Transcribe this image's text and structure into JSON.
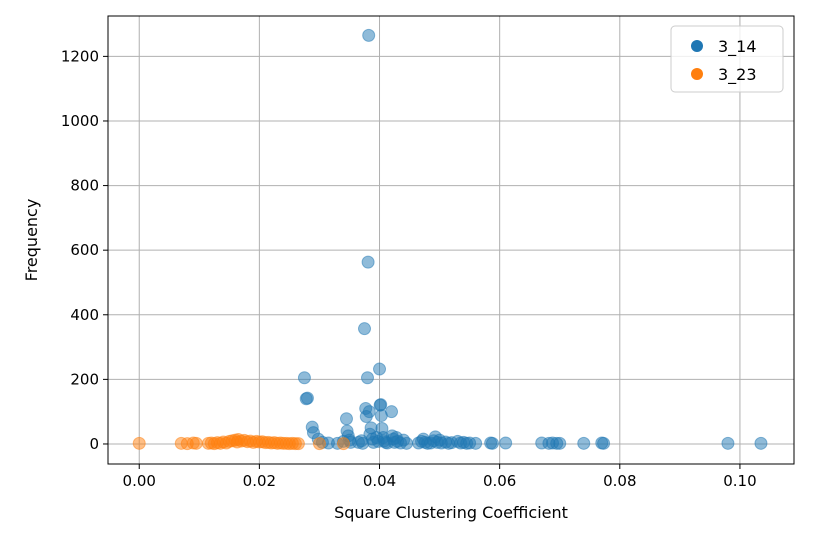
{
  "chart_data": {
    "type": "scatter",
    "title": "",
    "xlabel": "Square Clustering Coefficient",
    "ylabel": "Frequency",
    "xlim": [
      -0.0052,
      0.109
    ],
    "ylim": [
      -62,
      1325
    ],
    "xticks": [
      0.0,
      0.02,
      0.04,
      0.06,
      0.08,
      0.1
    ],
    "xtick_labels": [
      "0.00",
      "0.02",
      "0.04",
      "0.06",
      "0.08",
      "0.10"
    ],
    "yticks": [
      0,
      200,
      400,
      600,
      800,
      1000,
      1200
    ],
    "ytick_labels": [
      "0",
      "200",
      "400",
      "600",
      "800",
      "1000",
      "1200"
    ],
    "grid": true,
    "legend_position": "top-right",
    "marker_alpha": 0.5,
    "series": [
      {
        "name": "3_14",
        "color": "#1f77b4",
        "points": [
          [
            0.0275,
            205
          ],
          [
            0.0278,
            140
          ],
          [
            0.028,
            142
          ],
          [
            0.0288,
            52
          ],
          [
            0.029,
            35
          ],
          [
            0.0298,
            15
          ],
          [
            0.0305,
            5
          ],
          [
            0.0315,
            3
          ],
          [
            0.033,
            2
          ],
          [
            0.034,
            8
          ],
          [
            0.0345,
            78
          ],
          [
            0.0346,
            40
          ],
          [
            0.0348,
            25
          ],
          [
            0.035,
            12
          ],
          [
            0.0352,
            5
          ],
          [
            0.0365,
            5
          ],
          [
            0.037,
            10
          ],
          [
            0.0372,
            2
          ],
          [
            0.0375,
            357
          ],
          [
            0.0377,
            110
          ],
          [
            0.0378,
            85
          ],
          [
            0.038,
            205
          ],
          [
            0.0381,
            563
          ],
          [
            0.0382,
            1265
          ],
          [
            0.0383,
            100
          ],
          [
            0.0384,
            30
          ],
          [
            0.0386,
            50
          ],
          [
            0.0388,
            15
          ],
          [
            0.039,
            5
          ],
          [
            0.0395,
            20
          ],
          [
            0.0398,
            8
          ],
          [
            0.04,
            232
          ],
          [
            0.0401,
            120
          ],
          [
            0.0402,
            122
          ],
          [
            0.0403,
            88
          ],
          [
            0.0404,
            48
          ],
          [
            0.0406,
            20
          ],
          [
            0.0408,
            10
          ],
          [
            0.041,
            5
          ],
          [
            0.0413,
            3
          ],
          [
            0.042,
            100
          ],
          [
            0.0421,
            25
          ],
          [
            0.0423,
            15
          ],
          [
            0.0425,
            5
          ],
          [
            0.0428,
            20
          ],
          [
            0.043,
            8
          ],
          [
            0.0435,
            3
          ],
          [
            0.044,
            12
          ],
          [
            0.0445,
            2
          ],
          [
            0.0465,
            3
          ],
          [
            0.047,
            8
          ],
          [
            0.0473,
            15
          ],
          [
            0.0476,
            5
          ],
          [
            0.048,
            2
          ],
          [
            0.0485,
            3
          ],
          [
            0.049,
            10
          ],
          [
            0.0493,
            22
          ],
          [
            0.0496,
            5
          ],
          [
            0.05,
            12
          ],
          [
            0.0503,
            3
          ],
          [
            0.051,
            6
          ],
          [
            0.0515,
            2
          ],
          [
            0.052,
            4
          ],
          [
            0.053,
            8
          ],
          [
            0.0535,
            3
          ],
          [
            0.054,
            5
          ],
          [
            0.0545,
            2
          ],
          [
            0.055,
            3
          ],
          [
            0.056,
            2
          ],
          [
            0.0585,
            3
          ],
          [
            0.0588,
            2
          ],
          [
            0.061,
            3
          ],
          [
            0.067,
            3
          ],
          [
            0.0682,
            2
          ],
          [
            0.0688,
            3
          ],
          [
            0.0695,
            2
          ],
          [
            0.07,
            2
          ],
          [
            0.074,
            2
          ],
          [
            0.077,
            3
          ],
          [
            0.0773,
            2
          ],
          [
            0.098,
            2
          ],
          [
            0.1035,
            2
          ]
        ]
      },
      {
        "name": "3_23",
        "color": "#ff7f0e",
        "points": [
          [
            0.0,
            2
          ],
          [
            0.007,
            2
          ],
          [
            0.008,
            1
          ],
          [
            0.009,
            3
          ],
          [
            0.0095,
            2
          ],
          [
            0.0115,
            2
          ],
          [
            0.012,
            3
          ],
          [
            0.0125,
            1
          ],
          [
            0.013,
            4
          ],
          [
            0.0135,
            2
          ],
          [
            0.014,
            6
          ],
          [
            0.0145,
            3
          ],
          [
            0.015,
            8
          ],
          [
            0.0155,
            10
          ],
          [
            0.016,
            12
          ],
          [
            0.0163,
            6
          ],
          [
            0.0165,
            14
          ],
          [
            0.017,
            9
          ],
          [
            0.0175,
            11
          ],
          [
            0.018,
            7
          ],
          [
            0.0185,
            9
          ],
          [
            0.019,
            5
          ],
          [
            0.0195,
            8
          ],
          [
            0.02,
            6
          ],
          [
            0.0205,
            7
          ],
          [
            0.021,
            4
          ],
          [
            0.0215,
            5
          ],
          [
            0.022,
            3
          ],
          [
            0.0225,
            4
          ],
          [
            0.023,
            2
          ],
          [
            0.0235,
            3
          ],
          [
            0.024,
            2
          ],
          [
            0.0245,
            2
          ],
          [
            0.025,
            1
          ],
          [
            0.0255,
            2
          ],
          [
            0.026,
            1
          ],
          [
            0.0265,
            1
          ],
          [
            0.03,
            1
          ],
          [
            0.034,
            1
          ]
        ]
      }
    ]
  }
}
